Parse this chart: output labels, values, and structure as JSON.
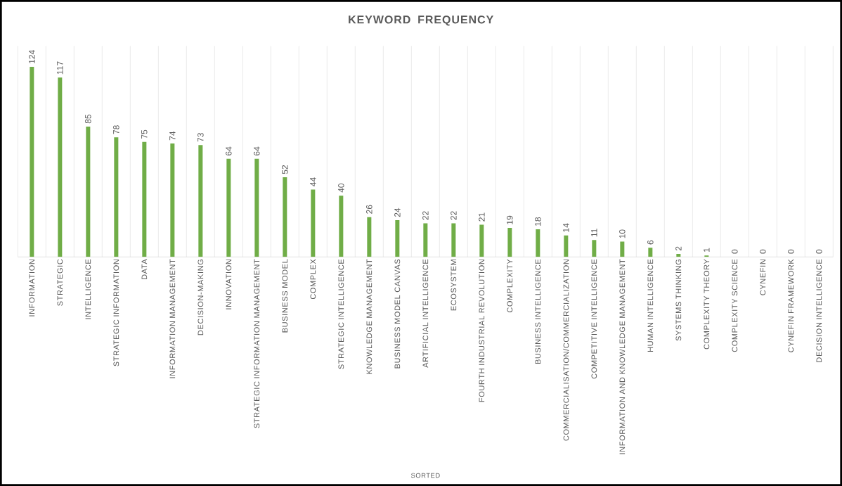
{
  "chart_data": {
    "type": "bar",
    "title": "KEYWORD FREQUENCY",
    "annotations": [
      "SORTED"
    ],
    "categories": [
      "INFORMATION",
      "STRATEGIC",
      "INTELLIGENCE",
      "STRATEGIC INFORMATION",
      "DATA",
      "INFORMATION MANAGEMENT",
      "DECISION-MAKING",
      "INNOVATION",
      "STRATEGIC INFORMATION MANAGEMENT",
      "BUSINESS MODEL",
      "COMPLEX",
      "STRATEGIC INTELLIGENCE",
      "KNOWLEDGE MANAGEMENT",
      "BUSINESS MODEL CANVAS",
      "ARTIFICIAL INTELLIGENCE",
      "ECOSYSTEM",
      "FOURTH INDUSTRIAL REVOLUTION",
      "COMPLEXITY",
      "BUSINESS INTELLIGENCE",
      "COMMERCIALISATION/COMMERCIALIZATION",
      "COMPETITIVE INTELLIGENCE",
      "INFORMATION AND KNOWLEDGE MANAGEMENT",
      "HUMAN INTELLIGENCE",
      "SYSTEMS THINKING",
      "COMPLEXITY THEORY",
      "COMPLEXITY SCIENCE",
      "CYNEFIN",
      "CYNEFIN FRAMEWORK",
      "DECISION INTELLIGENCE"
    ],
    "values": [
      124,
      117,
      85,
      78,
      75,
      74,
      73,
      64,
      64,
      52,
      44,
      40,
      26,
      24,
      22,
      22,
      21,
      19,
      18,
      14,
      11,
      10,
      6,
      2,
      1,
      0,
      0,
      0,
      0
    ],
    "color": "#70ad47",
    "data_labels": true,
    "grid": "x"
  }
}
